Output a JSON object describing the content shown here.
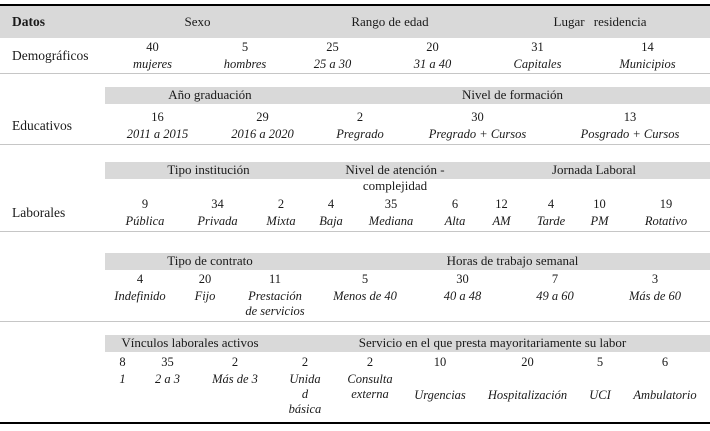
{
  "colors": {
    "band_bg": "#d9d9d9",
    "top_bottom_line": "#000000",
    "row_rule": "#c6c6c6"
  },
  "top_header": {
    "datos": "Datos",
    "sexo": "Sexo",
    "rango_edad": "Rango de edad",
    "lugar_residencia": "Lugar residencia"
  },
  "demograficos": {
    "label": "Demográficos",
    "cells": [
      {
        "value": "40",
        "category": "mujeres"
      },
      {
        "value": "5",
        "category": "hombres"
      },
      {
        "value": "25",
        "category": "25 a 30"
      },
      {
        "value": "20",
        "category": "31 a 40"
      },
      {
        "value": "31",
        "category": "Capitales"
      },
      {
        "value": "14",
        "category": "Municipios"
      }
    ]
  },
  "educativos": {
    "label": "Educativos",
    "band": {
      "ano_graduacion": "Año graduación",
      "nivel_formacion": "Nivel de formación"
    },
    "cells": [
      {
        "value": "16",
        "category": "2011 a 2015"
      },
      {
        "value": "29",
        "category": "2016 a 2020"
      },
      {
        "value": "2",
        "category": "Pregrado"
      },
      {
        "value": "30",
        "category": "Pregrado + Cursos"
      },
      {
        "value": "13",
        "category": "Posgrado + Cursos"
      }
    ]
  },
  "laborales": {
    "label": "Laborales",
    "band1": {
      "tipo_institucion": "Tipo institución",
      "nivel_atencion": "Nivel de atención -\ncomplejidad",
      "jornada_laboral": "Jornada Laboral"
    },
    "cells1": [
      {
        "value": "9",
        "category": "Pública"
      },
      {
        "value": "34",
        "category": "Privada"
      },
      {
        "value": "2",
        "category": "Mixta"
      },
      {
        "value": "4",
        "category": "Baja"
      },
      {
        "value": "35",
        "category": "Mediana"
      },
      {
        "value": "6",
        "category": "Alta"
      },
      {
        "value": "12",
        "category": "AM"
      },
      {
        "value": "4",
        "category": "Tarde"
      },
      {
        "value": "10",
        "category": "PM"
      },
      {
        "value": "19",
        "category": "Rotativo"
      }
    ],
    "band2": {
      "tipo_contrato": "Tipo de contrato",
      "horas_trabajo": "Horas de trabajo semanal"
    },
    "cells2": [
      {
        "value": "4",
        "category": "Indefinido"
      },
      {
        "value": "20",
        "category": "Fijo"
      },
      {
        "value": "11",
        "category": "Prestación\nde servicios"
      },
      {
        "value": "5",
        "category": "Menos de 40"
      },
      {
        "value": "30",
        "category": "40 a 48"
      },
      {
        "value": "7",
        "category": "49 a 60"
      },
      {
        "value": "3",
        "category": "Más de 60"
      }
    ],
    "band3": {
      "vinculos": "Vínculos laborales activos",
      "servicio": "Servicio en el que presta mayoritariamente su labor"
    },
    "cells3": [
      {
        "value": "8",
        "category": "1"
      },
      {
        "value": "35",
        "category": "2 a 3"
      },
      {
        "value": "2",
        "category": "Más de 3"
      },
      {
        "value": "2",
        "category": "Unida\nd\nbásica"
      },
      {
        "value": "2",
        "category": "Consulta\nexterna"
      },
      {
        "value": "10",
        "category": "Urgencias"
      },
      {
        "value": "20",
        "category": "Hospitalización"
      },
      {
        "value": "5",
        "category": "UCI"
      },
      {
        "value": "6",
        "category": "Ambulatorio"
      }
    ]
  }
}
